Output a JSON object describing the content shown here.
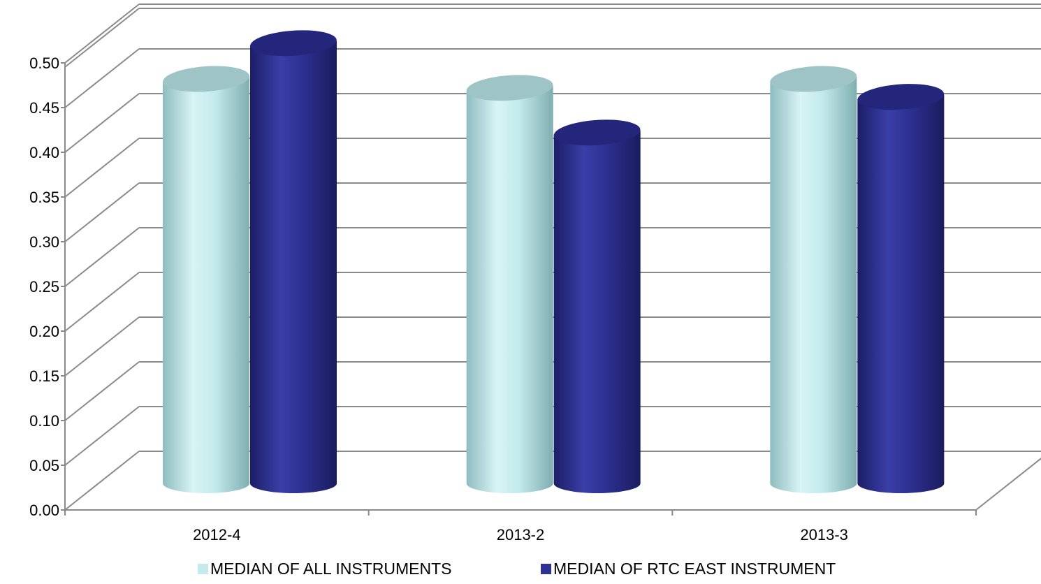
{
  "chart_data": {
    "type": "bar",
    "style": "3d-cylinder",
    "title": "",
    "xlabel": "",
    "ylabel": "",
    "categories": [
      "2012-4",
      "2013-2",
      "2013-3"
    ],
    "ylim": [
      0,
      0.5
    ],
    "yticks": [
      "0.00",
      "0.05",
      "0.10",
      "0.15",
      "0.20",
      "0.25",
      "0.30",
      "0.35",
      "0.40",
      "0.45",
      "0.50"
    ],
    "grid": true,
    "legend_position": "bottom",
    "series": [
      {
        "name": "MEDIAN OF ALL INSTRUMENTS",
        "color": "#c4eaec",
        "values": [
          0.45,
          0.44,
          0.45
        ]
      },
      {
        "name": "MEDIAN OF RTC EAST INSTRUMENT",
        "color": "#2e3192",
        "values": [
          0.49,
          0.39,
          0.43
        ]
      }
    ]
  }
}
